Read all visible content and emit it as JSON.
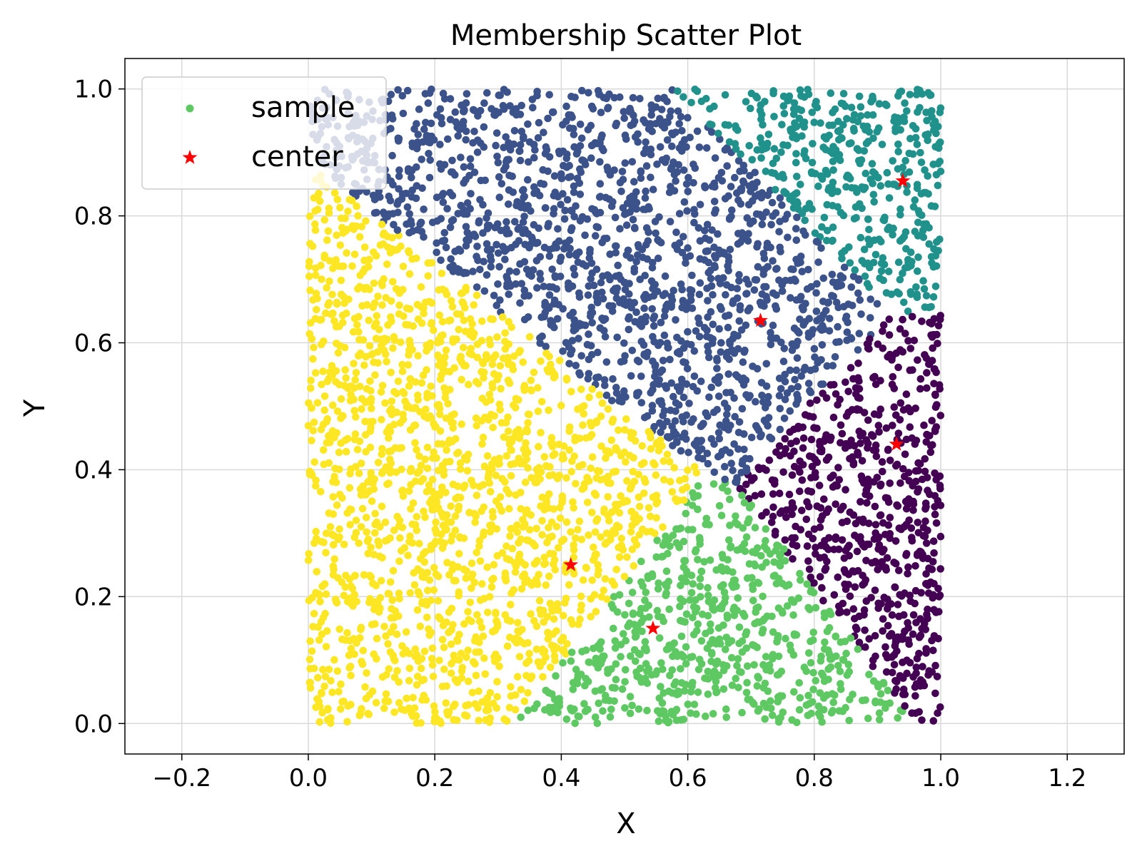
{
  "chart_data": {
    "type": "scatter",
    "title": "Membership Scatter Plot",
    "xlabel": "X",
    "ylabel": "Y",
    "xlim": [
      -0.29,
      1.29
    ],
    "ylim": [
      -0.048,
      1.048
    ],
    "x_ticks": [
      -0.2,
      0.0,
      0.2,
      0.4,
      0.6,
      0.8,
      1.0,
      1.2
    ],
    "x_tick_labels": [
      "−0.2",
      "0.0",
      "0.2",
      "0.4",
      "0.6",
      "0.8",
      "1.0",
      "1.2"
    ],
    "y_ticks": [
      0.0,
      0.2,
      0.4,
      0.6,
      0.8,
      1.0
    ],
    "y_tick_labels": [
      "0.0",
      "0.2",
      "0.4",
      "0.6",
      "0.8",
      "1.0"
    ],
    "grid": true,
    "legend_placement": "upper-left",
    "legend": [
      {
        "label": "sample",
        "marker": "dot",
        "color": "#5ec962"
      },
      {
        "label": "center",
        "marker": "star",
        "color": "#ff0000"
      }
    ],
    "sample_domain": {
      "x": [
        0.0,
        1.0
      ],
      "y": [
        0.0,
        1.0
      ],
      "approx_point_count": 5000
    },
    "clusters": [
      {
        "center": [
          0.93,
          0.44
        ],
        "color": "#440154"
      },
      {
        "center": [
          0.715,
          0.635
        ],
        "color": "#3b528b"
      },
      {
        "center": [
          0.94,
          0.855
        ],
        "color": "#21918c"
      },
      {
        "center": [
          0.545,
          0.15
        ],
        "color": "#5ec962"
      },
      {
        "center": [
          0.415,
          0.25
        ],
        "color": "#fde725"
      }
    ],
    "centers": [
      {
        "x": 0.94,
        "y": 0.855
      },
      {
        "x": 0.715,
        "y": 0.635
      },
      {
        "x": 0.93,
        "y": 0.44
      },
      {
        "x": 0.415,
        "y": 0.25
      },
      {
        "x": 0.545,
        "y": 0.15
      }
    ]
  }
}
